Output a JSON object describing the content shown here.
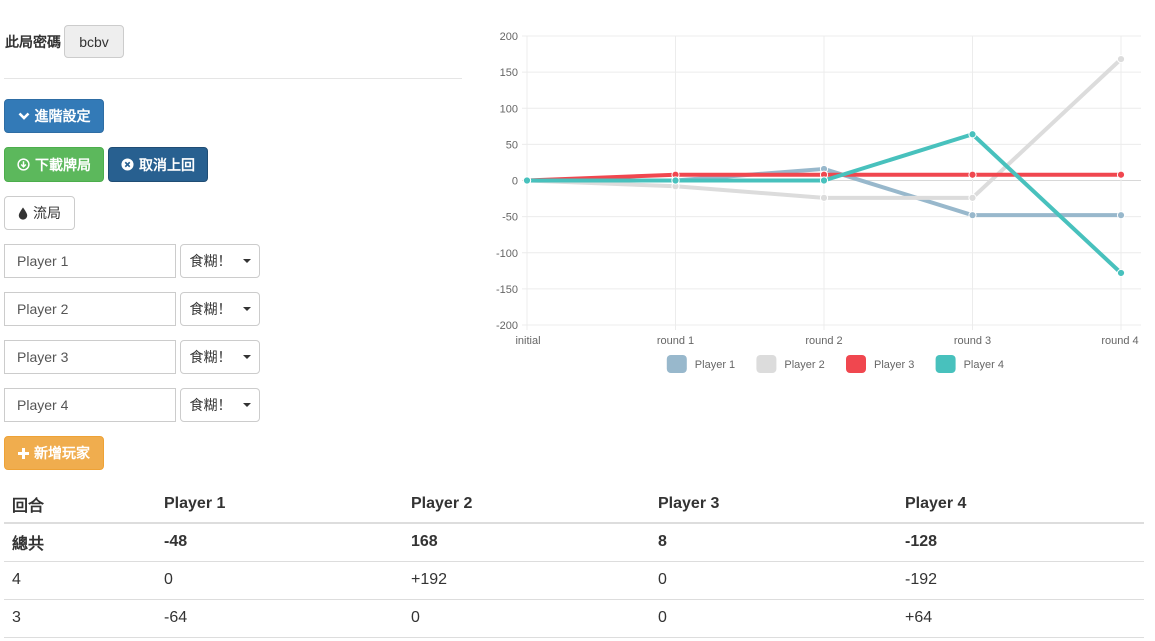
{
  "header": {
    "password_label": "此局密碼",
    "password_value": "bcbv"
  },
  "buttons": {
    "advanced": "進階設定",
    "download": "下載牌局",
    "undo": "取消上回",
    "draw": "流局",
    "add_player": "新增玩家"
  },
  "players": [
    {
      "name": "Player 1",
      "action": "食糊！"
    },
    {
      "name": "Player 2",
      "action": "食糊！"
    },
    {
      "name": "Player 3",
      "action": "食糊！"
    },
    {
      "name": "Player 4",
      "action": "食糊！"
    }
  ],
  "colors": {
    "p1": "#98b8cc",
    "p2": "#dcdcdc",
    "p3": "#f0474f",
    "p4": "#48c1bd"
  },
  "chart_data": {
    "type": "line",
    "x": [
      "initial",
      "round 1",
      "round 2",
      "round 3",
      "round 4"
    ],
    "ylim": [
      -200,
      200
    ],
    "yticks": [
      200,
      150,
      100,
      50,
      0,
      -50,
      -100,
      -150,
      -200
    ],
    "grid": true,
    "legend": "bottom",
    "series": [
      {
        "name": "Player 1",
        "color": "#98b8cc",
        "values": [
          0,
          0,
          16,
          -48,
          -48
        ]
      },
      {
        "name": "Player 2",
        "color": "#dcdcdc",
        "values": [
          0,
          -8,
          -24,
          -24,
          168
        ]
      },
      {
        "name": "Player 3",
        "color": "#f0474f",
        "values": [
          0,
          8,
          8,
          8,
          8
        ]
      },
      {
        "name": "Player 4",
        "color": "#48c1bd",
        "values": [
          0,
          0,
          0,
          64,
          -128
        ]
      }
    ]
  },
  "table": {
    "headers": [
      "回合",
      "Player 1",
      "Player 2",
      "Player 3",
      "Player 4"
    ],
    "rows": [
      [
        "總共",
        "-48",
        "168",
        "8",
        "-128"
      ],
      [
        "4",
        "0",
        "+192",
        "0",
        "-192"
      ],
      [
        "3",
        "-64",
        "0",
        "0",
        "+64"
      ]
    ]
  }
}
